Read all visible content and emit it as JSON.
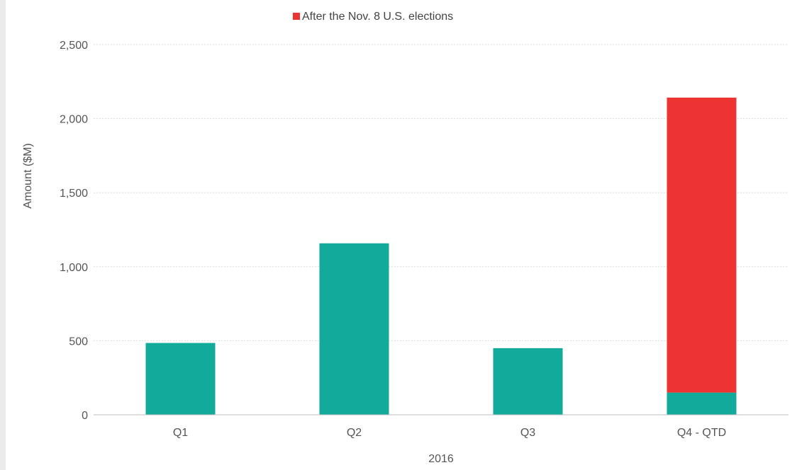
{
  "chart_data": {
    "type": "bar",
    "stacked": true,
    "categories": [
      "Q1",
      "Q2",
      "Q3",
      "Q4 - QTD"
    ],
    "series": [
      {
        "values": [
          485,
          1158,
          450,
          150
        ],
        "color": "#12aa9b"
      },
      {
        "name": "After the Nov. 8 U.S. elections",
        "values": [
          0,
          0,
          0,
          1992
        ],
        "color": "#ee3333"
      }
    ],
    "title": "",
    "xlabel": "2016",
    "ylabel": "Amount ($M)",
    "ylim": [
      0,
      2500
    ],
    "yticks": [
      0,
      500,
      1000,
      1500,
      2000,
      2500
    ],
    "ytick_labels": [
      "0",
      "500",
      "1,000",
      "1,500",
      "2,000",
      "2,500"
    ],
    "grid": true,
    "legend_position": "top-center"
  }
}
